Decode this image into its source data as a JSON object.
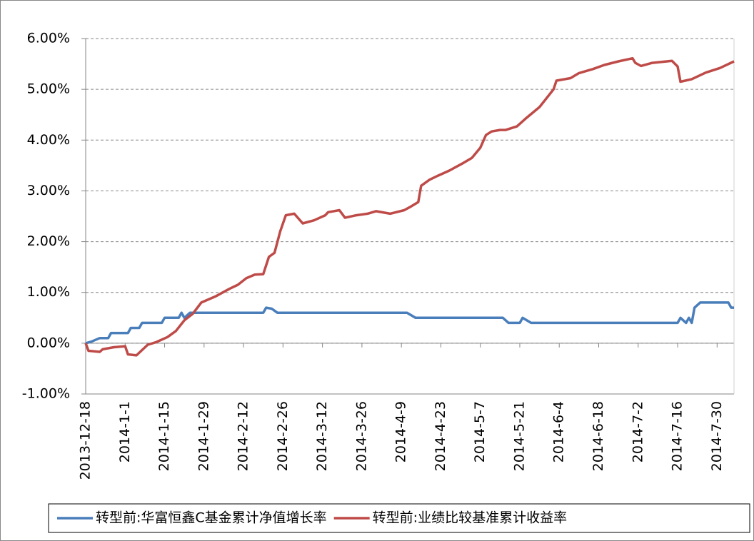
{
  "chart_data": {
    "type": "line",
    "xlim": [
      "2013-12-18",
      "2014-8-5"
    ],
    "xticks": [
      "2013-12-18",
      "2014-1-1",
      "2014-1-15",
      "2014-1-29",
      "2014-2-12",
      "2014-2-26",
      "2014-3-12",
      "2014-3-26",
      "2014-4-9",
      "2014-4-23",
      "2014-5-7",
      "2014-5-21",
      "2014-6-4",
      "2014-6-18",
      "2014-7-2",
      "2014-7-16",
      "2014-7-30"
    ],
    "ylim": [
      -1,
      6
    ],
    "yticks": [
      {
        "value": -1,
        "label": "-1.00%"
      },
      {
        "value": 0,
        "label": "0.00%"
      },
      {
        "value": 1,
        "label": "1.00%"
      },
      {
        "value": 2,
        "label": "2.00%"
      },
      {
        "value": 3,
        "label": "3.00%"
      },
      {
        "value": 4,
        "label": "4.00%"
      },
      {
        "value": 5,
        "label": "5.00%"
      },
      {
        "value": 6,
        "label": "6.00%"
      }
    ],
    "grid": true,
    "legend": "bottom",
    "series": [
      {
        "name": "转型前:华富恒鑫C基金累计净值增长率",
        "color": "#4a7ebb",
        "x": [
          "2013-12-18",
          "2013-12-20",
          "2013-12-23",
          "2013-12-26",
          "2013-12-27",
          "2014-1-2",
          "2014-1-3",
          "2014-1-6",
          "2014-1-7",
          "2014-1-14",
          "2014-1-15",
          "2014-1-20",
          "2014-1-21",
          "2014-1-22",
          "2014-1-24",
          "2014-2-19",
          "2014-2-20",
          "2014-2-22",
          "2014-2-24",
          "2014-4-11",
          "2014-4-14",
          "2014-5-15",
          "2014-5-17",
          "2014-5-21",
          "2014-5-22",
          "2014-5-25",
          "2014-7-16",
          "2014-7-17",
          "2014-7-19",
          "2014-7-20",
          "2014-7-21",
          "2014-7-22",
          "2014-7-24",
          "2014-8-3",
          "2014-8-4",
          "2014-8-5"
        ],
        "values": [
          0,
          0.03,
          0.1,
          0.1,
          0.2,
          0.2,
          0.3,
          0.3,
          0.4,
          0.4,
          0.5,
          0.5,
          0.6,
          0.5,
          0.6,
          0.6,
          0.7,
          0.68,
          0.6,
          0.6,
          0.5,
          0.5,
          0.4,
          0.4,
          0.5,
          0.4,
          0.4,
          0.5,
          0.4,
          0.5,
          0.4,
          0.7,
          0.8,
          0.8,
          0.7,
          0.7
        ]
      },
      {
        "name": "转型前:业绩比较基准累计收益率",
        "color": "#be4b48",
        "x": [
          "2013-12-18",
          "2013-12-19",
          "2013-12-23",
          "2013-12-24",
          "2013-12-28",
          "2014-1-1",
          "2014-1-2",
          "2014-1-5",
          "2014-1-9",
          "2014-1-12",
          "2014-1-16",
          "2014-1-19",
          "2014-1-22",
          "2014-1-25",
          "2014-1-28",
          "2014-2-2",
          "2014-2-7",
          "2014-2-10",
          "2014-2-13",
          "2014-2-16",
          "2014-2-19",
          "2014-2-21",
          "2014-2-23",
          "2014-2-25",
          "2014-2-27",
          "2014-3-2",
          "2014-3-5",
          "2014-3-9",
          "2014-3-13",
          "2014-3-14",
          "2014-3-18",
          "2014-3-20",
          "2014-3-24",
          "2014-3-28",
          "2014-3-31",
          "2014-4-5",
          "2014-4-10",
          "2014-4-12",
          "2014-4-15",
          "2014-4-16",
          "2014-4-19",
          "2014-4-22",
          "2014-4-26",
          "2014-5-1",
          "2014-5-4",
          "2014-5-7",
          "2014-5-9",
          "2014-5-11",
          "2014-5-14",
          "2014-5-16",
          "2014-5-20",
          "2014-5-23",
          "2014-5-28",
          "2014-6-2",
          "2014-6-3",
          "2014-6-8",
          "2014-6-11",
          "2014-6-16",
          "2014-6-20",
          "2014-6-25",
          "2014-6-30",
          "2014-7-1",
          "2014-7-3",
          "2014-7-7",
          "2014-7-14",
          "2014-7-16",
          "2014-7-17",
          "2014-7-21",
          "2014-7-26",
          "2014-7-31",
          "2014-8-5"
        ],
        "values": [
          0,
          -0.15,
          -0.17,
          -0.12,
          -0.08,
          -0.06,
          -0.22,
          -0.24,
          -0.03,
          0.02,
          0.12,
          0.24,
          0.45,
          0.58,
          0.8,
          0.92,
          1.07,
          1.15,
          1.28,
          1.35,
          1.36,
          1.7,
          1.78,
          2.2,
          2.52,
          2.55,
          2.36,
          2.42,
          2.52,
          2.58,
          2.62,
          2.47,
          2.52,
          2.55,
          2.6,
          2.55,
          2.62,
          2.68,
          2.78,
          3.1,
          3.22,
          3.3,
          3.4,
          3.55,
          3.65,
          3.85,
          4.1,
          4.17,
          4.2,
          4.2,
          4.27,
          4.42,
          4.65,
          5.0,
          5.17,
          5.22,
          5.32,
          5.4,
          5.48,
          5.55,
          5.61,
          5.52,
          5.46,
          5.52,
          5.56,
          5.45,
          5.15,
          5.2,
          5.33,
          5.42,
          5.55
        ]
      }
    ]
  }
}
